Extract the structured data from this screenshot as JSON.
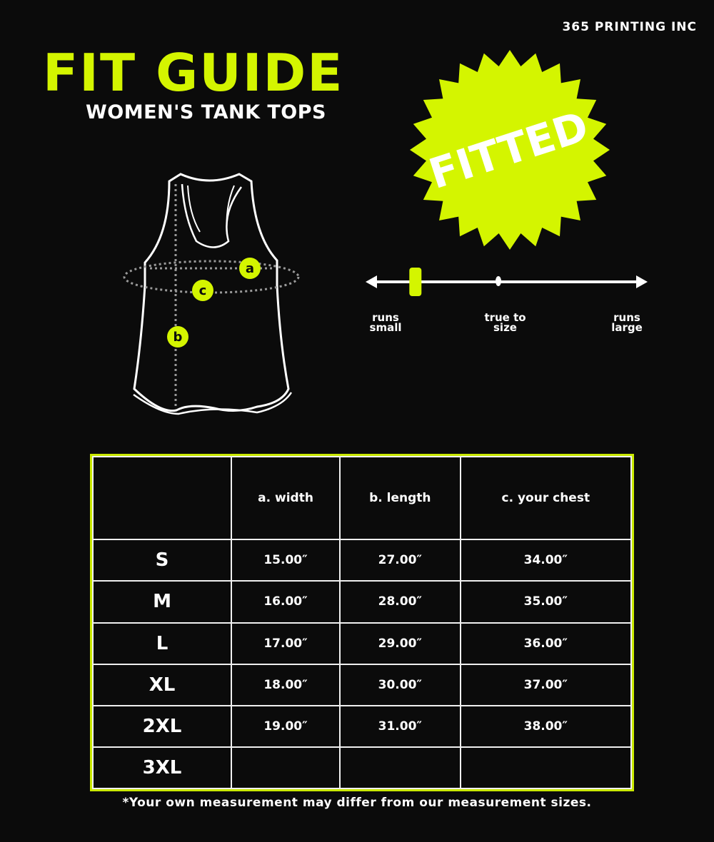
{
  "brand": "365 PRINTING INC",
  "title": "FIT GUIDE",
  "subtitle": "WOMEN'S TANK TOPS",
  "colors": {
    "accent": "#d4f500",
    "background": "#0b0b0b",
    "line": "#ffffff"
  },
  "badge": {
    "label": "FITTED"
  },
  "diagram": {
    "labels": [
      "a",
      "c",
      "b"
    ]
  },
  "fit_scale": {
    "left": "runs small",
    "center": "true to size",
    "right": "runs large",
    "marker_fraction": 0.17
  },
  "table": {
    "headers": [
      "",
      "a. width",
      "b. length",
      "c. your chest"
    ],
    "rows": [
      [
        "S",
        "15.00″",
        "27.00″",
        "34.00″"
      ],
      [
        "M",
        "16.00″",
        "28.00″",
        "35.00″"
      ],
      [
        "L",
        "17.00″",
        "29.00″",
        "36.00″"
      ],
      [
        "XL",
        "18.00″",
        "30.00″",
        "37.00″"
      ],
      [
        "2XL",
        "19.00″",
        "31.00″",
        "38.00″"
      ],
      [
        "3XL",
        "",
        "",
        ""
      ]
    ]
  },
  "note": "*Your own measurement may differ from our measurement sizes."
}
